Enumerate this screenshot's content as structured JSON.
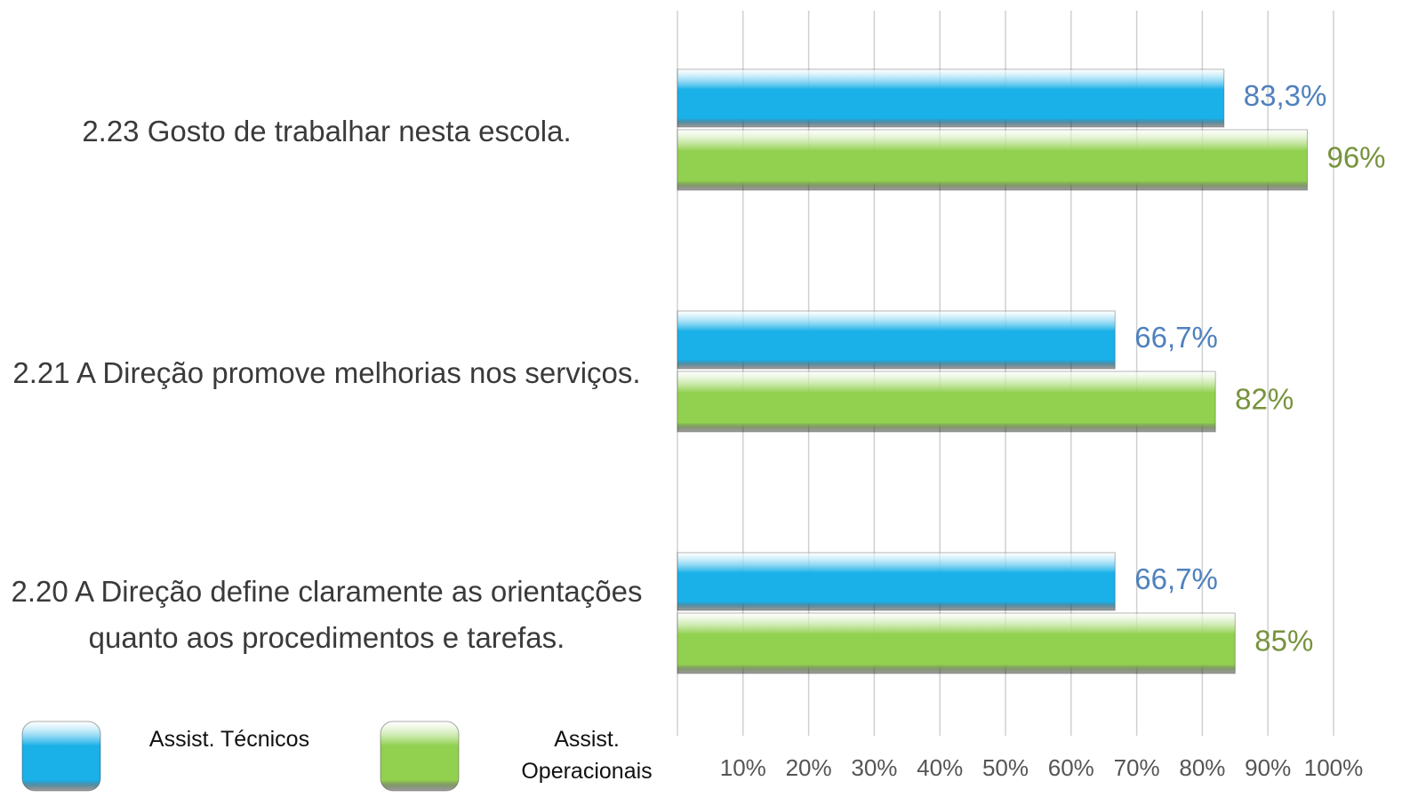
{
  "chart_data": {
    "type": "bar",
    "orientation": "horizontal",
    "categories": [
      "2.23 Gosto de trabalhar nesta escola.",
      "2.21 A Direção promove melhorias nos serviços.",
      "2.20 A Direção define claramente as orientações quanto aos procedimentos e tarefas."
    ],
    "series": [
      {
        "name": "Assist. Técnicos",
        "color": "#1ab0e8",
        "label_color": "#4f81bd",
        "values": [
          83.3,
          66.7,
          66.7
        ],
        "value_labels": [
          "83,3%",
          "66,7%",
          "66,7%"
        ]
      },
      {
        "name": "Assist. Operacionais",
        "color": "#92d050",
        "label_color": "#77933c",
        "values": [
          96,
          82,
          85
        ],
        "value_labels": [
          "96%",
          "82%",
          "85%"
        ]
      }
    ],
    "xlim": [
      0,
      100
    ],
    "xticks": [
      {
        "value": 10,
        "label": "10%"
      },
      {
        "value": 20,
        "label": "20%"
      },
      {
        "value": 30,
        "label": "30%"
      },
      {
        "value": 40,
        "label": "40%"
      },
      {
        "value": 50,
        "label": "50%"
      },
      {
        "value": 60,
        "label": "60%"
      },
      {
        "value": 70,
        "label": "70%"
      },
      {
        "value": 80,
        "label": "80%"
      },
      {
        "value": 90,
        "label": "90%"
      },
      {
        "value": 100,
        "label": "100%"
      }
    ],
    "grid": true,
    "legend": "bottom-left"
  }
}
